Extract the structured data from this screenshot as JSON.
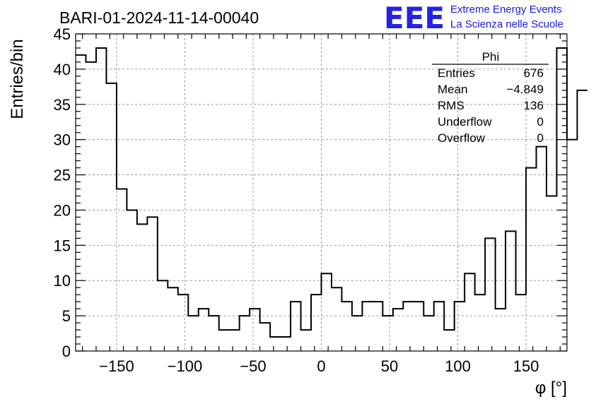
{
  "logo": {
    "mark": "EEE",
    "line1": "Extreme Energy Events",
    "line2": "La Scienza nelle Scuole",
    "color": "#2323e6"
  },
  "chart_data": {
    "type": "histogram",
    "title": "BARI-01-2024-11-14-00040",
    "xlabel": "φ [°]",
    "ylabel": "Entries/bin",
    "xlim": [
      -180,
      180
    ],
    "ylim": [
      0,
      45
    ],
    "xticks": [
      -150,
      -100,
      -50,
      0,
      50,
      100,
      150
    ],
    "yticks": [
      0,
      5,
      10,
      15,
      20,
      25,
      30,
      35,
      40,
      45
    ],
    "grid": true,
    "line_color": "#000000",
    "bin_width": 7.5,
    "bin_edges_start": -180,
    "values": [
      42,
      41,
      43,
      38,
      23,
      20,
      18,
      19,
      10,
      9,
      8,
      5,
      6,
      5,
      3,
      3,
      5,
      6,
      4,
      2,
      2,
      7,
      3,
      8,
      11,
      9,
      7,
      5,
      7,
      7,
      5,
      6,
      7,
      7,
      5,
      7,
      3,
      7,
      11,
      8,
      16,
      6,
      17,
      8,
      26,
      29,
      22,
      43,
      30,
      37
    ],
    "stats_box": {
      "name": "Phi",
      "rows": [
        {
          "label": "Entries",
          "value": "676"
        },
        {
          "label": "Mean",
          "value": "−4.849"
        },
        {
          "label": "RMS",
          "value": "136"
        },
        {
          "label": "Underflow",
          "value": "0"
        },
        {
          "label": "Overflow",
          "value": "0"
        }
      ]
    }
  }
}
